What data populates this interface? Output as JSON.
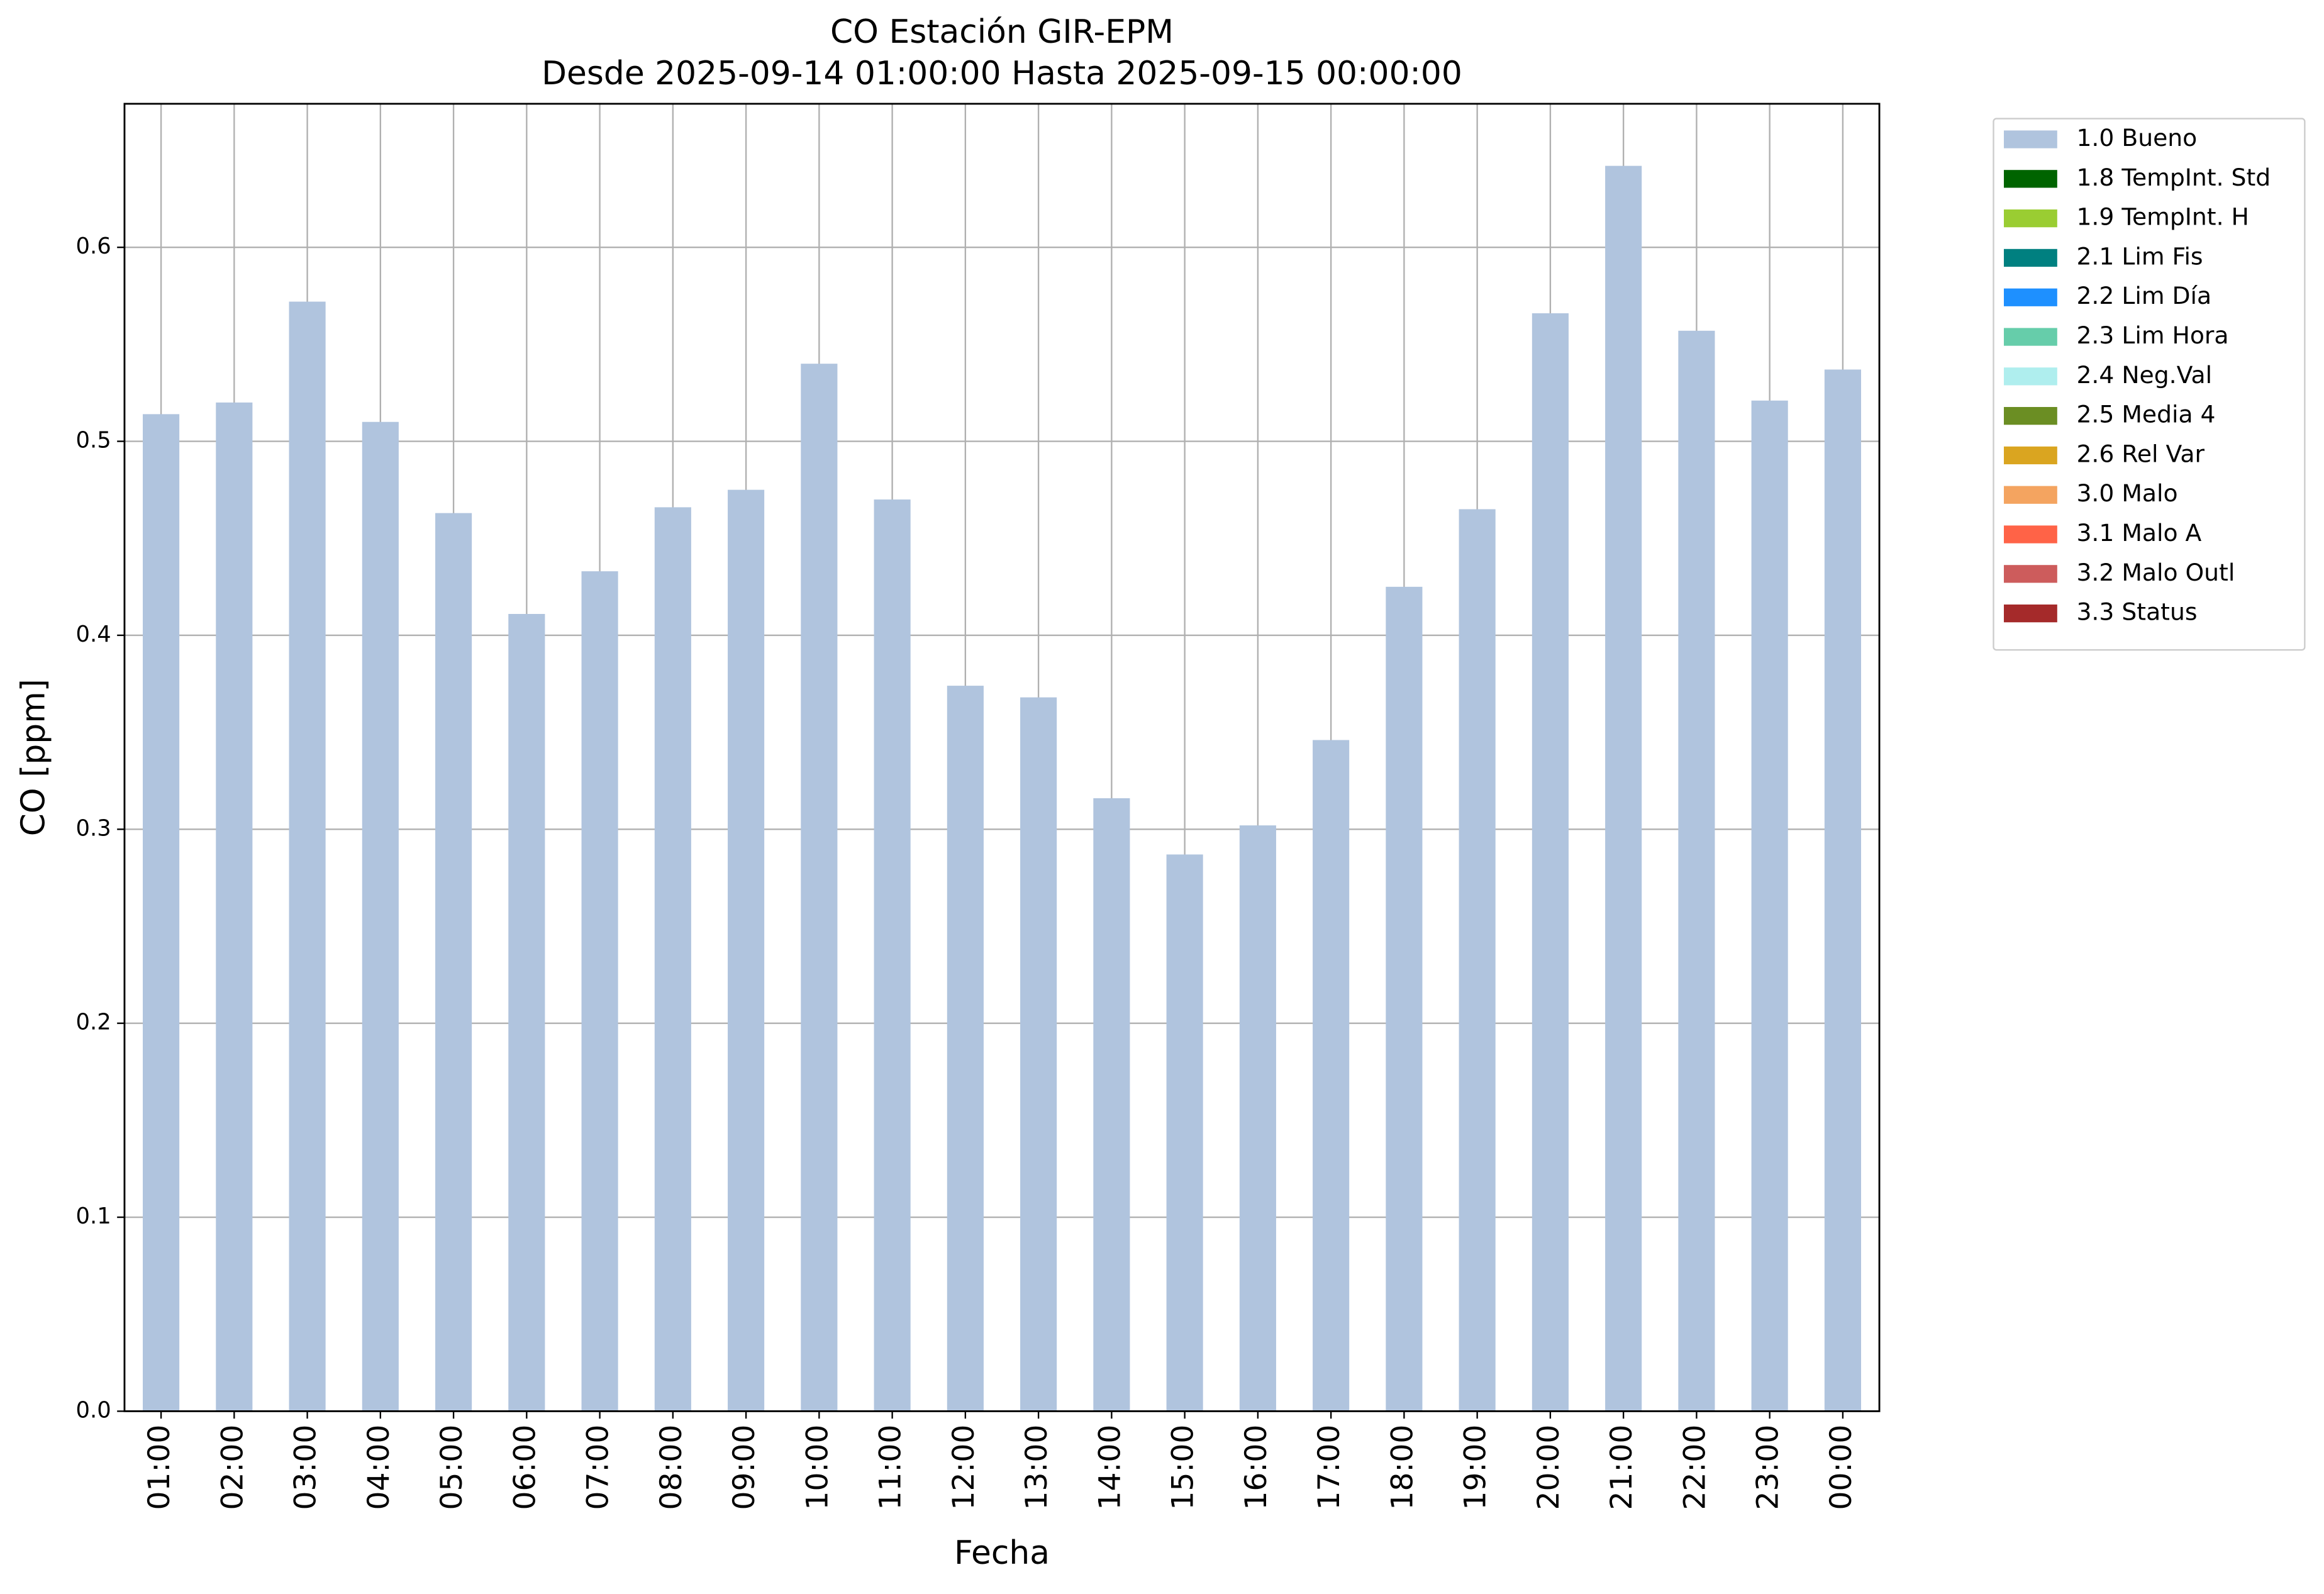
{
  "chart_data": {
    "type": "stacked_bar",
    "title": "CO Estación GIR-EPM",
    "subtitle": "Desde 2025-09-14 01:00:00 Hasta 2025-09-15 00:00:00",
    "x_label": "Fecha",
    "y_label": "CO [ppm]",
    "categories": [
      "01:00",
      "02:00",
      "03:00",
      "04:00",
      "05:00",
      "06:00",
      "07:00",
      "08:00",
      "09:00",
      "10:00",
      "11:00",
      "12:00",
      "13:00",
      "14:00",
      "15:00",
      "16:00",
      "17:00",
      "18:00",
      "19:00",
      "20:00",
      "21:00",
      "22:00",
      "23:00",
      "00:00"
    ],
    "series": [
      {
        "name": "1.0 Bueno",
        "color": "#b0c4de",
        "values": [
          0.514,
          0.52,
          0.572,
          0.51,
          0.463,
          0.411,
          0.433,
          0.466,
          0.475,
          0.54,
          0.47,
          0.374,
          0.368,
          0.316,
          0.287,
          0.302,
          0.346,
          0.425,
          0.465,
          0.566,
          0.642,
          0.557,
          0.521,
          0.537
        ]
      },
      {
        "name": "1.8 TempInt. Std",
        "color": "#006400",
        "values": [
          null,
          null,
          null,
          null,
          null,
          null,
          null,
          null,
          null,
          null,
          null,
          null,
          null,
          null,
          null,
          null,
          null,
          null,
          null,
          null,
          null,
          null,
          null,
          null
        ]
      },
      {
        "name": "1.9 TempInt. H",
        "color": "#9acd32",
        "values": [
          null,
          null,
          null,
          null,
          null,
          null,
          null,
          null,
          null,
          null,
          null,
          null,
          null,
          null,
          null,
          null,
          null,
          null,
          null,
          null,
          null,
          null,
          null,
          null
        ]
      },
      {
        "name": "2.1 Lim Fis",
        "color": "#008080",
        "values": [
          null,
          null,
          null,
          null,
          null,
          null,
          null,
          null,
          null,
          null,
          null,
          null,
          null,
          null,
          null,
          null,
          null,
          null,
          null,
          null,
          null,
          null,
          null,
          null
        ]
      },
      {
        "name": "2.2 Lim Día",
        "color": "#1e90ff",
        "values": [
          null,
          null,
          null,
          null,
          null,
          null,
          null,
          null,
          null,
          null,
          null,
          null,
          null,
          null,
          null,
          null,
          null,
          null,
          null,
          null,
          null,
          null,
          null,
          null
        ]
      },
      {
        "name": "2.3 Lim Hora",
        "color": "#66cdaa",
        "values": [
          null,
          null,
          null,
          null,
          null,
          null,
          null,
          null,
          null,
          null,
          null,
          null,
          null,
          null,
          null,
          null,
          null,
          null,
          null,
          null,
          null,
          null,
          null,
          null
        ]
      },
      {
        "name": "2.4 Neg.Val",
        "color": "#afeeee",
        "values": [
          null,
          null,
          null,
          null,
          null,
          null,
          null,
          null,
          null,
          null,
          null,
          null,
          null,
          null,
          null,
          null,
          null,
          null,
          null,
          null,
          null,
          null,
          null,
          null
        ]
      },
      {
        "name": "2.5 Media 4",
        "color": "#6b8e23",
        "values": [
          null,
          null,
          null,
          null,
          null,
          null,
          null,
          null,
          null,
          null,
          null,
          null,
          null,
          null,
          null,
          null,
          null,
          null,
          null,
          null,
          null,
          null,
          null,
          null
        ]
      },
      {
        "name": "2.6 Rel Var",
        "color": "#daa520",
        "values": [
          null,
          null,
          null,
          null,
          null,
          null,
          null,
          null,
          null,
          null,
          null,
          null,
          null,
          null,
          null,
          null,
          null,
          null,
          null,
          null,
          null,
          null,
          null,
          null
        ]
      },
      {
        "name": "3.0 Malo",
        "color": "#f4a460",
        "values": [
          null,
          null,
          null,
          null,
          null,
          null,
          null,
          null,
          null,
          null,
          null,
          null,
          null,
          null,
          null,
          null,
          null,
          null,
          null,
          null,
          null,
          null,
          null,
          null
        ]
      },
      {
        "name": "3.1 Malo A",
        "color": "#ff6347",
        "values": [
          null,
          null,
          null,
          null,
          null,
          null,
          null,
          null,
          null,
          null,
          null,
          null,
          null,
          null,
          null,
          null,
          null,
          null,
          null,
          null,
          null,
          null,
          null,
          null
        ]
      },
      {
        "name": "3.2 Malo Outl",
        "color": "#cd5c5c",
        "values": [
          null,
          null,
          null,
          null,
          null,
          null,
          null,
          null,
          null,
          null,
          null,
          null,
          null,
          null,
          null,
          null,
          null,
          null,
          null,
          null,
          null,
          null,
          null,
          null
        ]
      },
      {
        "name": "3.3 Status",
        "color": "#a52a2a",
        "values": [
          null,
          null,
          null,
          null,
          null,
          null,
          null,
          null,
          null,
          null,
          null,
          null,
          null,
          null,
          null,
          null,
          null,
          null,
          null,
          null,
          null,
          null,
          null,
          null
        ]
      }
    ],
    "ylim": [
      0,
      0.674
    ],
    "yticks": [
      {
        "value": 0,
        "label": "0.0"
      },
      0.1,
      0.2,
      0.3,
      0.4,
      0.5,
      0.6
    ],
    "grid": true,
    "legend_position": "outside-right"
  }
}
